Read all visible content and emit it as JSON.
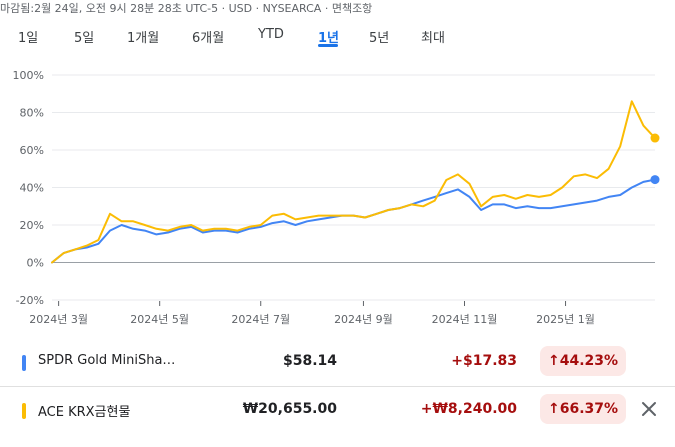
{
  "header": {
    "meta_text": "마감됨:2월 24일, 오전 9시 28분 28초 UTC-5 · USD · NYSEARCA · 면책조항"
  },
  "tabs": [
    {
      "label": "1일",
      "active": false
    },
    {
      "label": "5일",
      "active": false
    },
    {
      "label": "1개월",
      "active": false
    },
    {
      "label": "6개월",
      "active": false
    },
    {
      "label": "YTD",
      "active": false
    },
    {
      "label": "1년",
      "active": true
    },
    {
      "label": "5년",
      "active": false
    },
    {
      "label": "최대",
      "active": false
    }
  ],
  "colors": {
    "series_blue": "#4285f4",
    "series_gold": "#fbbc04",
    "accent": "#1a73e8",
    "positive_change": "#a50e0e",
    "badge_bg": "#fce8e6"
  },
  "chart_data": {
    "type": "line",
    "yticks": [
      "100%",
      "80%",
      "60%",
      "40%",
      "20%",
      "0%",
      "-20%"
    ],
    "xticks": [
      "2024년 3월",
      "2024년 5월",
      "2024년 7월",
      "2024년 9월",
      "2024년 11월",
      "2025년 1월"
    ],
    "ylim": [
      -20,
      100
    ],
    "grid": true,
    "x_dates": [
      "2024-02-26",
      "2024-03-04",
      "2024-03-11",
      "2024-03-18",
      "2024-03-25",
      "2024-04-01",
      "2024-04-08",
      "2024-04-15",
      "2024-04-22",
      "2024-04-29",
      "2024-05-06",
      "2024-05-13",
      "2024-05-20",
      "2024-05-27",
      "2024-06-03",
      "2024-06-10",
      "2024-06-17",
      "2024-06-24",
      "2024-07-01",
      "2024-07-08",
      "2024-07-15",
      "2024-07-22",
      "2024-07-29",
      "2024-08-05",
      "2024-08-12",
      "2024-08-19",
      "2024-08-26",
      "2024-09-02",
      "2024-09-09",
      "2024-09-16",
      "2024-09-23",
      "2024-09-30",
      "2024-10-07",
      "2024-10-14",
      "2024-10-21",
      "2024-10-28",
      "2024-11-04",
      "2024-11-11",
      "2024-11-18",
      "2024-11-25",
      "2024-12-02",
      "2024-12-09",
      "2024-12-16",
      "2024-12-23",
      "2024-12-30",
      "2025-01-06",
      "2025-01-13",
      "2025-01-20",
      "2025-01-27",
      "2025-02-03",
      "2025-02-10",
      "2025-02-17",
      "2025-02-24"
    ],
    "series": [
      {
        "name": "SPDR Gold MiniShares Trust",
        "color": "#4285f4",
        "values": [
          0,
          5,
          7,
          8,
          10,
          17,
          20,
          18,
          17,
          15,
          16,
          18,
          19,
          16,
          17,
          17,
          16,
          18,
          19,
          21,
          22,
          20,
          22,
          23,
          24,
          25,
          25,
          24,
          26,
          28,
          29,
          31,
          33,
          35,
          37,
          39,
          35,
          28,
          31,
          31,
          29,
          30,
          29,
          29,
          30,
          31,
          32,
          33,
          35,
          36,
          40,
          43,
          44.23
        ]
      },
      {
        "name": "ACE KRX금현물",
        "color": "#fbbc04",
        "values": [
          0,
          5,
          7,
          9,
          12,
          26,
          22,
          22,
          20,
          18,
          17,
          19,
          20,
          17,
          18,
          18,
          17,
          19,
          20,
          25,
          26,
          23,
          24,
          25,
          25,
          25,
          25,
          24,
          26,
          28,
          29,
          31,
          30,
          33,
          44,
          47,
          42,
          30,
          35,
          36,
          34,
          36,
          35,
          36,
          40,
          46,
          47,
          45,
          50,
          62,
          86,
          73,
          66.37
        ]
      }
    ]
  },
  "legend": [
    {
      "name": "SPDR Gold MiniSha…",
      "price": "$58.14",
      "change": "+$17.83",
      "percent": "44.23%",
      "color": "#4285f4"
    },
    {
      "name": "ACE KRX금현물",
      "price": "₩20,655.00",
      "change": "+₩8,240.00",
      "percent": "66.37%",
      "color": "#fbbc04"
    }
  ]
}
